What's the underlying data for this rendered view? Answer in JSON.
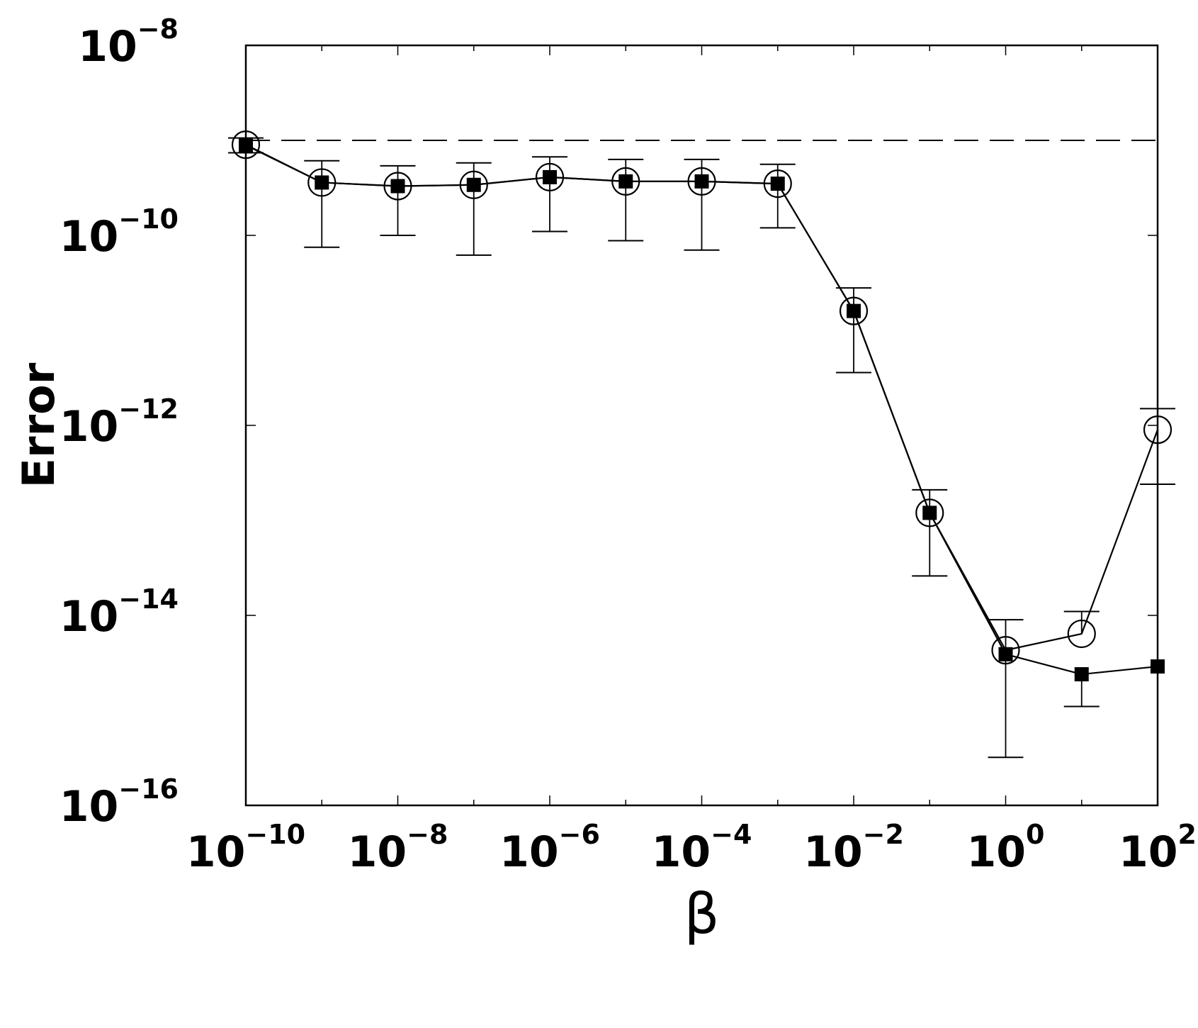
{
  "chart_data": {
    "type": "line",
    "xlabel": "β",
    "ylabel": "Error",
    "x_scale": "log",
    "y_scale": "log",
    "xlim": [
      1e-10,
      100
    ],
    "ylim": [
      1e-16,
      1e-08
    ],
    "grid": false,
    "x": [
      1e-10,
      1e-09,
      1e-08,
      1e-07,
      1e-06,
      1e-05,
      0.0001,
      0.001,
      0.01,
      0.1,
      1,
      10,
      100
    ],
    "x_ticks": [
      {
        "value": 1e-10,
        "base": "10",
        "exp": "−10"
      },
      {
        "value": 1e-08,
        "base": "10",
        "exp": "−8"
      },
      {
        "value": 1e-06,
        "base": "10",
        "exp": "−6"
      },
      {
        "value": 0.0001,
        "base": "10",
        "exp": "−4"
      },
      {
        "value": 0.01,
        "base": "10",
        "exp": "−2"
      },
      {
        "value": 1,
        "base": "10",
        "exp": "0"
      },
      {
        "value": 100,
        "base": "10",
        "exp": "2"
      }
    ],
    "y_ticks": [
      {
        "value": 1e-08,
        "base": "10",
        "exp": "−8"
      },
      {
        "value": 1e-10,
        "base": "10",
        "exp": "−10"
      },
      {
        "value": 1e-12,
        "base": "10",
        "exp": "−12"
      },
      {
        "value": 1e-14,
        "base": "10",
        "exp": "−14"
      },
      {
        "value": 1e-16,
        "base": "10",
        "exp": "−16"
      }
    ],
    "reference_line": {
      "y": 1e-09,
      "style": "dashed"
    },
    "series": [
      {
        "marker": "open-circle",
        "values": [
          9e-10,
          3.6e-10,
          3.3e-10,
          3.4e-10,
          4.1e-10,
          3.7e-10,
          3.7e-10,
          3.5e-10,
          1.6e-11,
          1.2e-13,
          4.3e-15,
          6.4e-15,
          9e-13
        ],
        "error_low": [
          7.4e-10,
          7.5e-11,
          1e-10,
          6.2e-11,
          1.1e-10,
          8.8e-11,
          7e-11,
          1.2e-10,
          3.6e-12,
          2.6e-14,
          3.2e-16,
          null,
          2.4e-13
        ],
        "error_high": [
          1.06e-09,
          6.1e-10,
          5.4e-10,
          5.8e-10,
          6.7e-10,
          6.3e-10,
          6.3e-10,
          5.6e-10,
          2.8e-11,
          2.1e-13,
          9e-15,
          1.1e-14,
          1.5e-12
        ]
      },
      {
        "marker": "filled-square",
        "values": [
          8.9e-10,
          3.6e-10,
          3.3e-10,
          3.4e-10,
          4.1e-10,
          3.7e-10,
          3.7e-10,
          3.5e-10,
          1.6e-11,
          1.2e-13,
          3.9e-15,
          2.4e-15,
          2.9e-15
        ],
        "error_low": [
          null,
          null,
          null,
          null,
          null,
          null,
          null,
          null,
          null,
          null,
          null,
          1.1e-15,
          null
        ],
        "error_high": [
          null,
          null,
          null,
          null,
          null,
          null,
          null,
          null,
          null,
          null,
          null,
          null,
          null
        ]
      }
    ]
  }
}
